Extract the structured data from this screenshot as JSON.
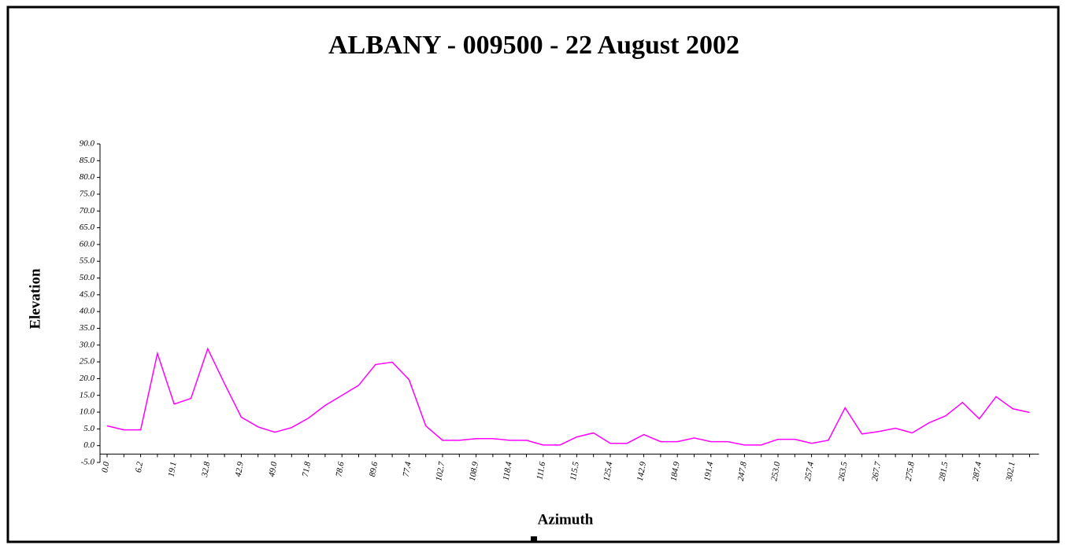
{
  "chart_data": {
    "type": "line",
    "title": "ALBANY - 009500 - 22 August 2002",
    "x_label": "Azimuth",
    "y_label": "Elevation",
    "categories": [
      "0.0",
      null,
      "6.2",
      null,
      "19.1",
      null,
      "32.8",
      null,
      "42.9",
      null,
      "49.0",
      null,
      "71.8",
      null,
      "78.6",
      null,
      "89.6",
      null,
      "77.4",
      null,
      "102.7",
      null,
      "108.9",
      null,
      "118.4",
      null,
      "111.6",
      null,
      "115.5",
      null,
      "125.4",
      null,
      "142.9",
      null,
      "184.9",
      null,
      "191.4",
      null,
      "247.8",
      null,
      "253.0",
      null,
      "257.4",
      null,
      "263.5",
      null,
      "267.7",
      null,
      "275.8",
      null,
      "281.5",
      null,
      "287.4",
      null,
      "302.1",
      null
    ],
    "series": [
      {
        "name": "Elevation",
        "color": "#ff00ff",
        "values": [
          5.9,
          4.7,
          4.7,
          27.5,
          12.4,
          14.1,
          28.9,
          18.5,
          8.5,
          5.6,
          4.0,
          5.4,
          8.2,
          12.0,
          15.0,
          18.0,
          24.2,
          24.9,
          19.7,
          5.9,
          1.6,
          1.6,
          2.1,
          2.1,
          1.6,
          1.6,
          0.2,
          0.2,
          2.6,
          3.8,
          0.7,
          0.7,
          3.3,
          1.2,
          1.2,
          2.3,
          1.2,
          1.2,
          0.2,
          0.2,
          1.9,
          1.9,
          0.7,
          1.6,
          11.3,
          3.5,
          4.2,
          5.2,
          3.8,
          6.8,
          8.9,
          12.9,
          8.0,
          14.6,
          11.0,
          9.9
        ]
      }
    ],
    "ylim": [
      -5,
      90
    ],
    "yticks": [
      {
        "value": -5,
        "label": "-5.0"
      },
      {
        "value": 0,
        "label": "0.0"
      },
      {
        "value": 5,
        "label": "5.0"
      },
      {
        "value": 10,
        "label": "10.0"
      },
      {
        "value": 15,
        "label": "15.0"
      },
      {
        "value": 20,
        "label": "20.0"
      },
      {
        "value": 25,
        "label": "25.0"
      },
      {
        "value": 30,
        "label": "30.0"
      },
      {
        "value": 35,
        "label": "35.0"
      },
      {
        "value": 40,
        "label": "40.0"
      },
      {
        "value": 45,
        "label": "45.0"
      },
      {
        "value": 50,
        "label": "50.0"
      },
      {
        "value": 55,
        "label": "55.0"
      },
      {
        "value": 60,
        "label": "60.0"
      },
      {
        "value": 65,
        "label": "65.0"
      },
      {
        "value": 70,
        "label": "70.0"
      },
      {
        "value": 75,
        "label": "75.0"
      },
      {
        "value": 80,
        "label": "80.0"
      },
      {
        "value": 85,
        "label": "85.0"
      },
      {
        "value": 90,
        "label": "90.0"
      }
    ],
    "grid": false
  }
}
